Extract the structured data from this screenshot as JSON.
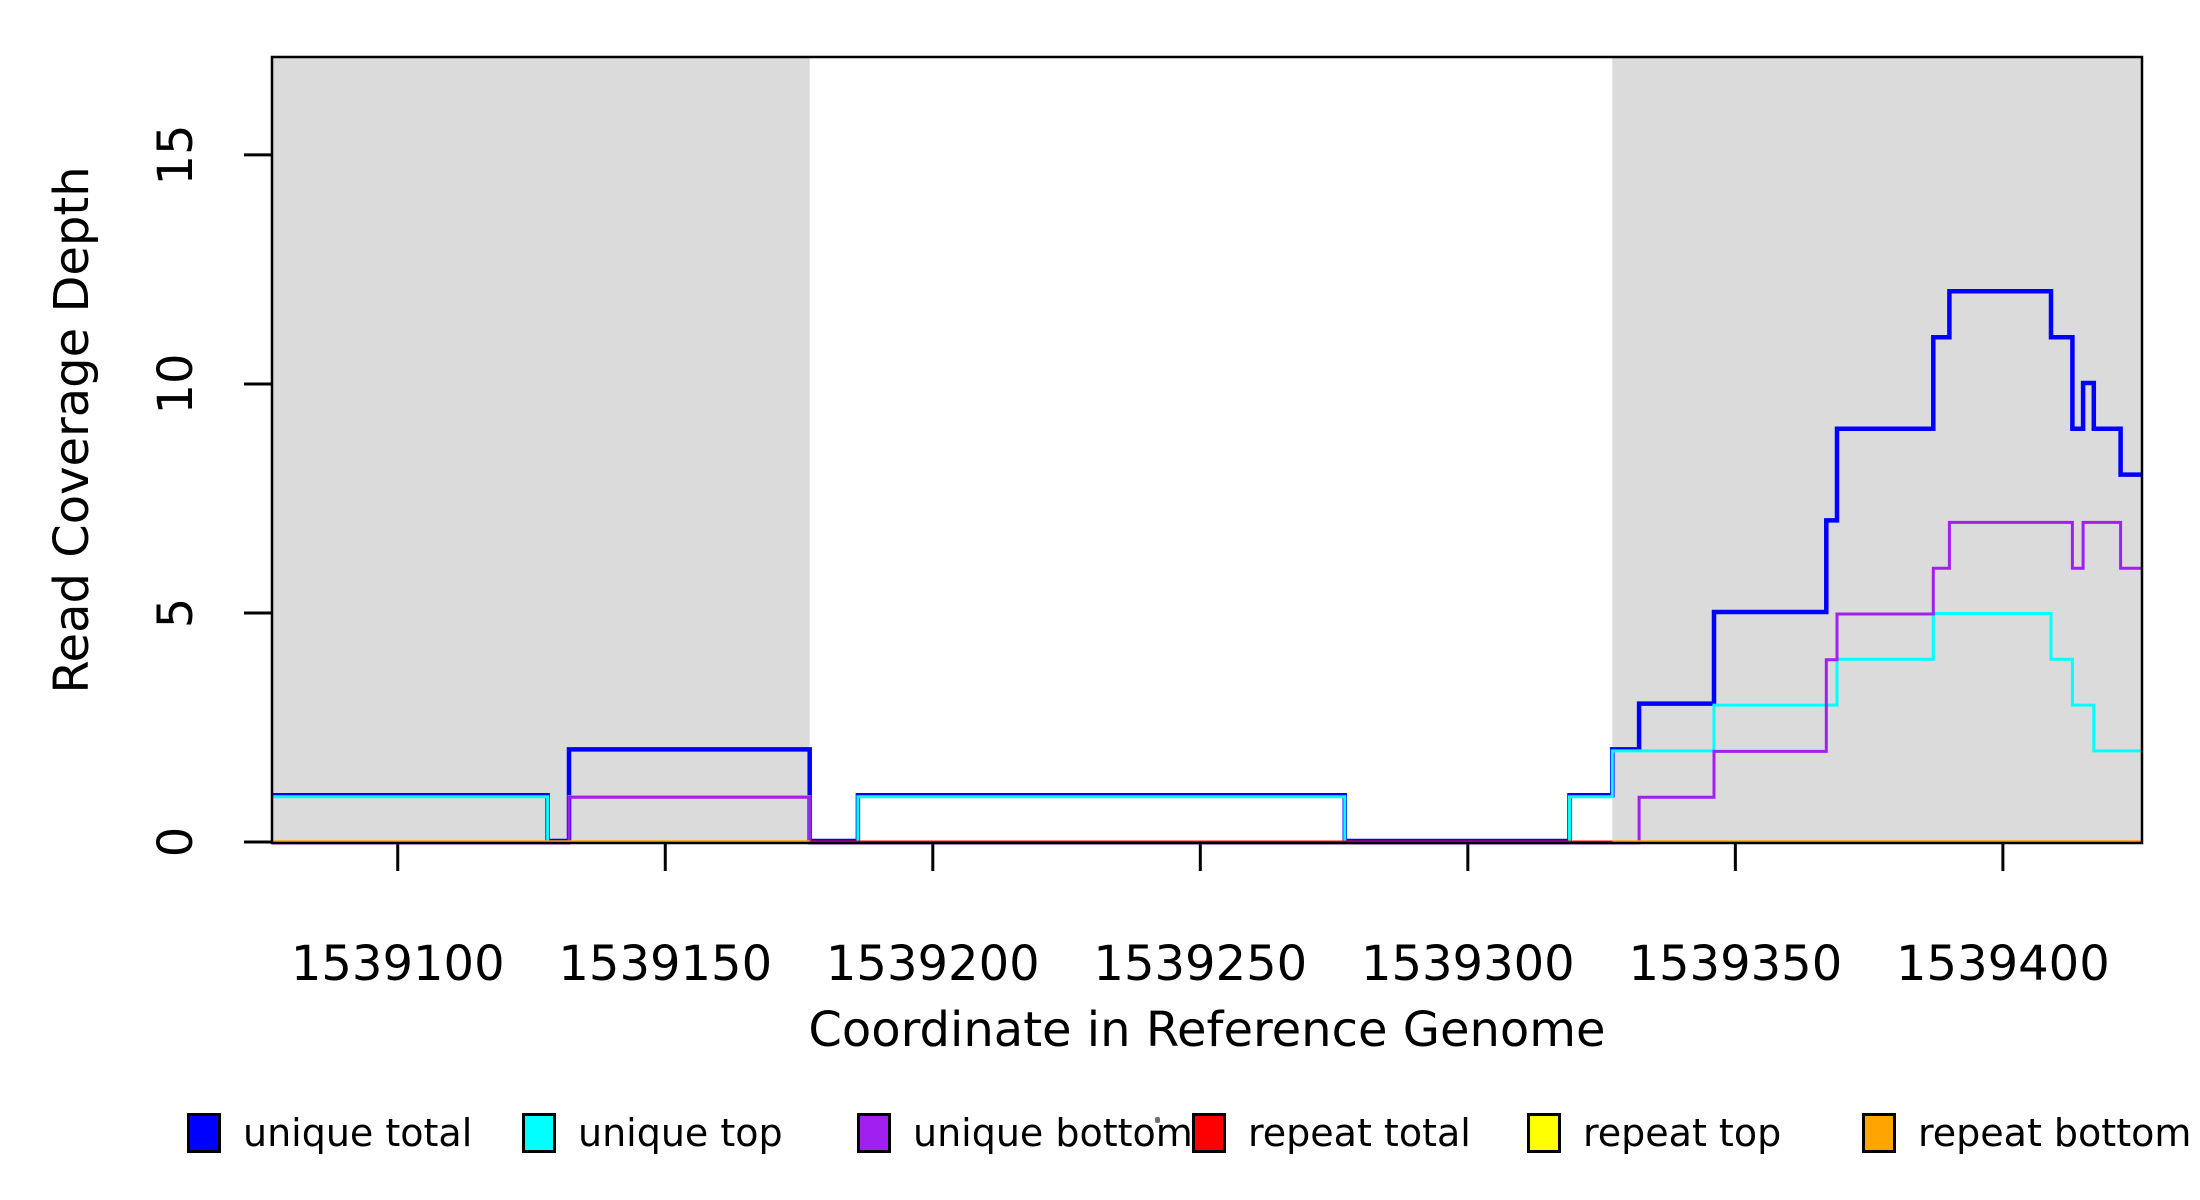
{
  "x_axis": {
    "label": "Coordinate in Reference Genome",
    "ticks": [
      1539100,
      1539150,
      1539200,
      1539250,
      1539300,
      1539350,
      1539400
    ],
    "range": [
      1539076.5,
      1539426
    ]
  },
  "y_axis": {
    "label": "Read Coverage Depth",
    "ticks": [
      0,
      5,
      10,
      15
    ],
    "range": [
      0,
      17.16
    ]
  },
  "colors": {
    "axis": "#000000",
    "shaded_region": "#DBDBDB",
    "background": "#FFFFFF"
  },
  "legend": {
    "items": [
      {
        "label": "unique total",
        "color": "#0000FF"
      },
      {
        "label": "unique top",
        "color": "#00FFFF"
      },
      {
        "label": "unique bottom",
        "color": "#A020F0"
      },
      {
        "label": "repeat total",
        "color": "#FF0000"
      },
      {
        "label": "repeat top",
        "color": "#FFFF00"
      },
      {
        "label": "repeat bottom",
        "color": "#FFA500"
      }
    ]
  },
  "chart_data": {
    "type": "line",
    "subtype": "step-coverage",
    "title": "",
    "xlabel": "Coordinate in Reference Genome",
    "ylabel": "Read Coverage Depth",
    "xlim": [
      1539076.5,
      1539426
    ],
    "ylim": [
      0,
      17.16
    ],
    "grid": false,
    "legend_position": "bottom",
    "shaded_regions": [
      {
        "name": "repeat-region-left",
        "from": 1539076.5,
        "to": 1539177,
        "color": "#DBDBDB"
      },
      {
        "name": "repeat-region-right",
        "from": 1539327,
        "to": 1539426,
        "color": "#DBDBDB"
      }
    ],
    "series": [
      {
        "name": "unique total",
        "color": "#0000FF",
        "paths": [
          [
            [
              1539076.5,
              1
            ],
            [
              1539128,
              0
            ],
            [
              1539132,
              2
            ],
            [
              1539177,
              0
            ],
            [
              1539186,
              1
            ],
            [
              1539277,
              0
            ],
            [
              1539319,
              1
            ],
            [
              1539327,
              2
            ],
            [
              1539332,
              3
            ],
            [
              1539346,
              5
            ],
            [
              1539367,
              7
            ],
            [
              1539369,
              9
            ],
            [
              1539387,
              11
            ],
            [
              1539390,
              12
            ],
            [
              1539409,
              11
            ],
            [
              1539413,
              9
            ],
            [
              1539415,
              10
            ],
            [
              1539417,
              9
            ],
            [
              1539422,
              8
            ],
            [
              1539426,
              8
            ]
          ]
        ]
      },
      {
        "name": "unique top",
        "color": "#00FFFF",
        "paths": [
          [
            [
              1539076.5,
              1
            ],
            [
              1539128,
              0
            ],
            [
              1539132,
              1
            ],
            [
              1539177,
              0
            ],
            [
              1539186,
              1
            ],
            [
              1539277,
              0
            ],
            [
              1539319,
              1
            ],
            [
              1539327,
              2
            ],
            [
              1539346,
              3
            ],
            [
              1539369,
              4
            ],
            [
              1539387,
              5
            ],
            [
              1539409,
              4
            ],
            [
              1539413,
              3
            ],
            [
              1539417,
              2
            ],
            [
              1539426,
              2
            ]
          ]
        ]
      },
      {
        "name": "unique bottom",
        "color": "#A020F0",
        "paths": [
          [
            [
              1539076.5,
              0
            ],
            [
              1539132,
              1
            ],
            [
              1539177,
              0
            ],
            [
              1539332,
              1
            ],
            [
              1539346,
              2
            ],
            [
              1539367,
              4
            ],
            [
              1539369,
              5
            ],
            [
              1539387,
              6
            ],
            [
              1539390,
              7
            ],
            [
              1539413,
              6
            ],
            [
              1539415,
              7
            ],
            [
              1539422,
              6
            ],
            [
              1539426,
              6
            ]
          ]
        ]
      },
      {
        "name": "repeat total",
        "color": "#FF0000",
        "paths": [
          [
            [
              1539076.5,
              0
            ],
            [
              1539426,
              0
            ]
          ]
        ]
      },
      {
        "name": "repeat top",
        "color": "#FFFF00",
        "paths": [
          [
            [
              1539076.5,
              0
            ],
            [
              1539426,
              0
            ]
          ]
        ]
      },
      {
        "name": "repeat bottom",
        "color": "#FFA500",
        "paths": [
          [
            [
              1539076.5,
              0
            ],
            [
              1539177,
              0
            ]
          ],
          [
            [
              1539327,
              0
            ],
            [
              1539426,
              0
            ]
          ]
        ]
      }
    ]
  }
}
